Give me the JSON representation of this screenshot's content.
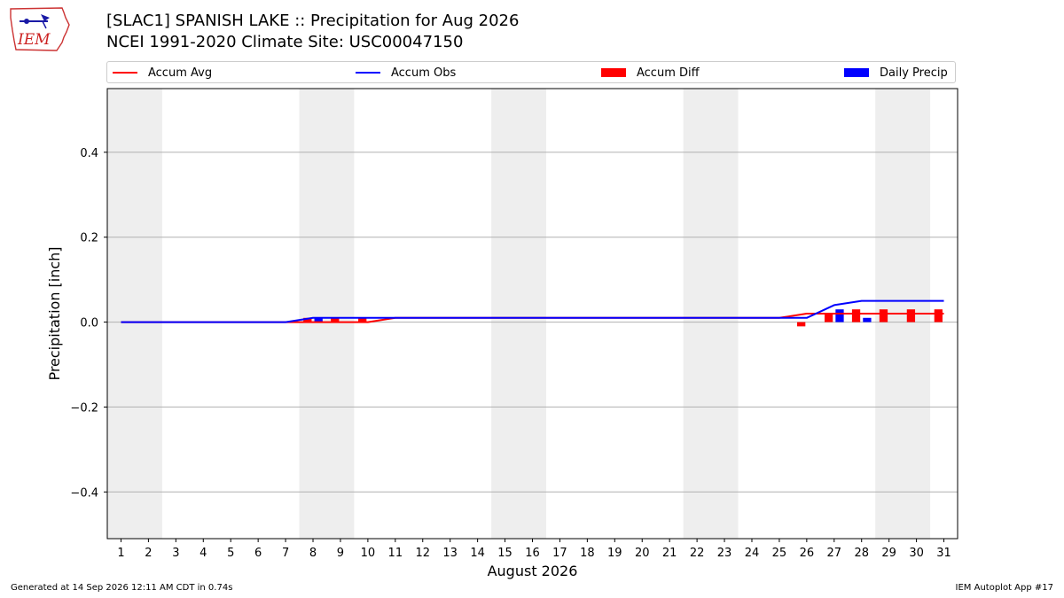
{
  "header": {
    "title_line1": "[SLAC1] SPANISH LAKE :: Precipitation for Aug 2026",
    "title_line2": "NCEI 1991-2020 Climate Site: USC00047150",
    "logo_text": "IEM"
  },
  "legend": {
    "items": [
      {
        "label": "Accum Avg",
        "color": "#ff0000",
        "kind": "line"
      },
      {
        "label": "Accum Obs",
        "color": "#0000ff",
        "kind": "line"
      },
      {
        "label": "Accum Diff",
        "color": "#ff0000",
        "kind": "box"
      },
      {
        "label": "Daily Precip",
        "color": "#0000ff",
        "kind": "box"
      }
    ],
    "placement": "top"
  },
  "footer": {
    "left": "Generated at 14 Sep 2026 12:11 AM CDT in 0.74s",
    "right": "IEM Autoplot App #17"
  },
  "chart_data": {
    "type": "line",
    "title": "[SLAC1] SPANISH LAKE :: Precipitation for Aug 2026",
    "subtitle": "NCEI 1991-2020 Climate Site: USC00047150",
    "xlabel": "August 2026",
    "ylabel": "Precipitation [inch]",
    "xlim": [
      0.5,
      31.5
    ],
    "ylim": [
      -0.51,
      0.55
    ],
    "yticks": [
      -0.4,
      -0.2,
      0.0,
      0.2,
      0.4
    ],
    "ytick_labels": [
      "−0.4",
      "−0.2",
      "0.0",
      "0.2",
      "0.4"
    ],
    "x": [
      1,
      2,
      3,
      4,
      5,
      6,
      7,
      8,
      9,
      10,
      11,
      12,
      13,
      14,
      15,
      16,
      17,
      18,
      19,
      20,
      21,
      22,
      23,
      24,
      25,
      26,
      27,
      28,
      29,
      30,
      31
    ],
    "weekend_shading": [
      [
        1,
        2
      ],
      [
        8,
        9
      ],
      [
        15,
        16
      ],
      [
        22,
        23
      ],
      [
        29,
        30
      ]
    ],
    "grid": "y",
    "series": [
      {
        "name": "Accum Avg",
        "type": "line",
        "color": "#ff0000",
        "values": [
          0,
          0,
          0,
          0,
          0,
          0,
          0,
          0,
          0,
          0,
          0.01,
          0.01,
          0.01,
          0.01,
          0.01,
          0.01,
          0.01,
          0.01,
          0.01,
          0.01,
          0.01,
          0.01,
          0.01,
          0.01,
          0.01,
          0.02,
          0.02,
          0.02,
          0.02,
          0.02,
          0.02
        ]
      },
      {
        "name": "Accum Obs",
        "type": "line",
        "color": "#0000ff",
        "values": [
          0,
          0,
          0,
          0,
          0,
          0,
          0,
          0.01,
          0.01,
          0.01,
          0.01,
          0.01,
          0.01,
          0.01,
          0.01,
          0.01,
          0.01,
          0.01,
          0.01,
          0.01,
          0.01,
          0.01,
          0.01,
          0.01,
          0.01,
          0.01,
          0.04,
          0.05,
          0.05,
          0.05,
          0.05
        ]
      },
      {
        "name": "Accum Diff",
        "type": "bar",
        "color": "#ff0000",
        "values": [
          0,
          0,
          0,
          0,
          0,
          0,
          0,
          0.01,
          0.01,
          0.01,
          0,
          0,
          0,
          0,
          0,
          0,
          0,
          0,
          0,
          0,
          0,
          0,
          0,
          0,
          0,
          -0.01,
          0.02,
          0.03,
          0.03,
          0.03,
          0.03
        ]
      },
      {
        "name": "Daily Precip",
        "type": "bar",
        "color": "#0000ff",
        "values": [
          0,
          0,
          0,
          0,
          0,
          0,
          0,
          0.01,
          0,
          0,
          0,
          0,
          0,
          0,
          0,
          0,
          0,
          0,
          0,
          0,
          0,
          0,
          0,
          0,
          0,
          0,
          0.03,
          0.01,
          0,
          0,
          0
        ]
      }
    ]
  }
}
